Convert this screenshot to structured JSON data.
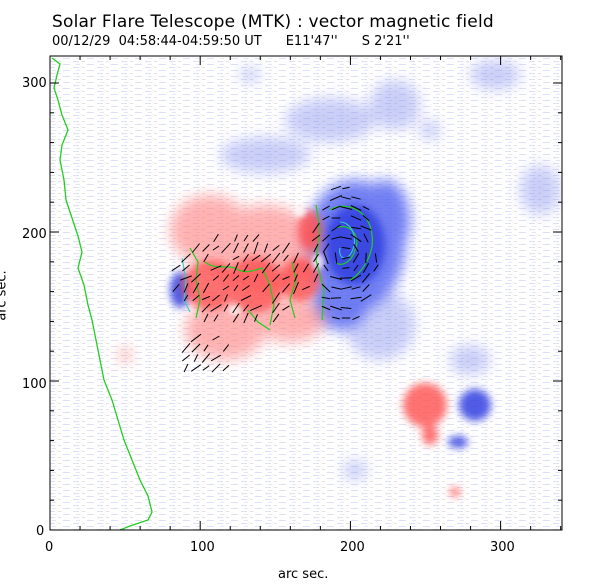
{
  "title": "Solar Flare Telescope (MTK) : vector magnetic field",
  "subtitle": {
    "datetime": "00/12/29  04:58:44-04:59:50 UT",
    "position_ew": "E11'47''",
    "position_ns": "S 2'21''"
  },
  "axes": {
    "xlabel": "arc sec.",
    "ylabel": "arc sec.",
    "x_range": [
      0,
      340
    ],
    "y_range": [
      0,
      320
    ],
    "x_ticks": [
      "0",
      "100",
      "200",
      "300"
    ],
    "y_ticks": [
      "0",
      "100",
      "200",
      "300"
    ]
  },
  "colors": {
    "positive_polarity": "#ff5a5a",
    "negative_polarity": "#4a5cf0",
    "limb_contour": "#22cc22",
    "vector_arrows": "#000000",
    "background_noise": "#c8ccee"
  }
}
